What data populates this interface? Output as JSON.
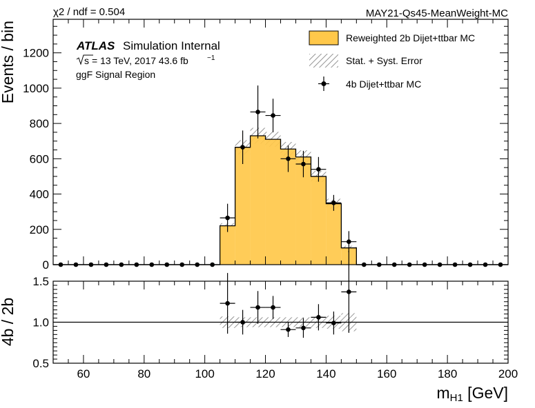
{
  "header": {
    "chi2": "χ2 / ndf = 0.504",
    "tag": "MAY21-Qs45-MeanWeight-MC"
  },
  "atlas_label": {
    "atlas": "ATLAS",
    "internal": "Simulation Internal",
    "sqrt_s": "s",
    "energy_lumi": "= 13 TeV, 2017 43.6 fb",
    "lumi_exp": "−1",
    "region": "ggF Signal Region"
  },
  "legend": {
    "hist_label": "Reweighted 2b Dijet+ttbar MC",
    "band_label": "Stat. + Syst. Error",
    "points_label": "4b Dijet+ttbar MC"
  },
  "colors": {
    "hist_fill": "#FFC84A",
    "line": "#000000",
    "hatch": "#7a7a7a"
  },
  "chart_data": [
    {
      "type": "bar",
      "title": "",
      "ylabel": "Events / bin",
      "xlim": [
        50,
        200
      ],
      "ylim": [
        0,
        1390
      ],
      "yticks": [
        0,
        200,
        400,
        600,
        800,
        1000,
        1200
      ],
      "bin_edges": [
        50,
        55,
        60,
        65,
        70,
        75,
        80,
        85,
        90,
        95,
        100,
        105,
        110,
        115,
        120,
        125,
        130,
        135,
        140,
        145,
        150,
        155,
        160,
        165,
        170,
        175,
        180,
        185,
        190,
        195,
        200
      ],
      "series": [
        {
          "name": "Reweighted 2b Dijet+ttbar MC",
          "type": "histogram",
          "values": [
            0,
            0,
            0,
            0,
            0,
            0,
            0,
            0,
            0,
            0,
            0,
            220,
            665,
            730,
            710,
            655,
            610,
            500,
            345,
            95,
            0,
            0,
            0,
            0,
            0,
            0,
            0,
            0,
            0,
            0
          ],
          "error": [
            0,
            0,
            0,
            0,
            0,
            0,
            0,
            0,
            0,
            0,
            0,
            15,
            40,
            45,
            42,
            40,
            38,
            32,
            28,
            12,
            0,
            0,
            0,
            0,
            0,
            0,
            0,
            0,
            0,
            0
          ]
        },
        {
          "name": "4b Dijet+ttbar MC",
          "type": "points",
          "values": [
            0,
            0,
            0,
            0,
            0,
            0,
            0,
            0,
            0,
            0,
            0,
            265,
            665,
            865,
            845,
            600,
            570,
            540,
            350,
            130,
            0,
            0,
            0,
            0,
            0,
            0,
            0,
            0,
            0,
            0
          ],
          "yerr": [
            0,
            0,
            0,
            0,
            0,
            0,
            0,
            0,
            0,
            0,
            0,
            80,
            95,
            150,
            95,
            75,
            75,
            70,
            45,
            60,
            0,
            0,
            0,
            0,
            0,
            0,
            0,
            0,
            0,
            0
          ]
        }
      ]
    },
    {
      "type": "scatter",
      "title": "",
      "xlabel": "m_H1 [GeV]",
      "ylabel": "4b / 2b",
      "xlim": [
        50,
        200
      ],
      "ylim": [
        0.5,
        1.5
      ],
      "yticks": [
        "0.5",
        "1.0",
        "1.5"
      ],
      "xticks": [
        60,
        80,
        100,
        120,
        140,
        160,
        180,
        200
      ],
      "reference_line": 1.0,
      "band": {
        "x": [
          107.5,
          112.5,
          117.5,
          122.5,
          127.5,
          132.5,
          137.5,
          142.5,
          147.5
        ],
        "low": [
          0.93,
          0.94,
          0.94,
          0.94,
          0.94,
          0.94,
          0.93,
          0.92,
          0.89
        ],
        "high": [
          1.07,
          1.06,
          1.06,
          1.06,
          1.06,
          1.06,
          1.07,
          1.08,
          1.11
        ]
      },
      "points": {
        "x": [
          107.5,
          112.5,
          117.5,
          122.5,
          127.5,
          132.5,
          137.5,
          142.5,
          147.5
        ],
        "y": [
          1.23,
          1.0,
          1.18,
          1.18,
          0.91,
          0.93,
          1.06,
          0.99,
          1.37
        ],
        "yerr": [
          0.37,
          0.15,
          0.2,
          0.14,
          0.09,
          0.12,
          0.16,
          0.14,
          0.5
        ]
      }
    }
  ]
}
